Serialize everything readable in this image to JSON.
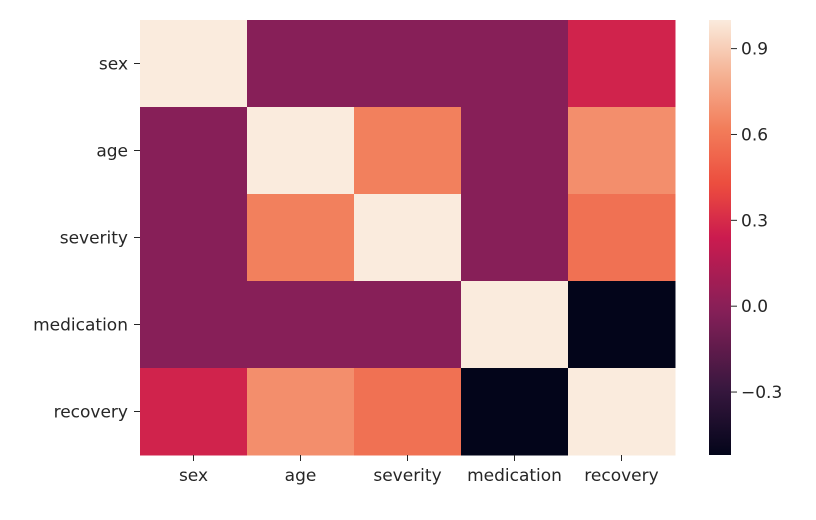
{
  "chart_data": {
    "type": "heatmap",
    "title": "",
    "xlabel": "",
    "ylabel": "",
    "rows": [
      "sex",
      "age",
      "severity",
      "medication",
      "recovery"
    ],
    "columns": [
      "sex",
      "age",
      "severity",
      "medication",
      "recovery"
    ],
    "values": [
      [
        1.0,
        -0.01,
        -0.01,
        -0.01,
        0.27
      ],
      [
        -0.01,
        1.0,
        0.63,
        -0.01,
        0.68
      ],
      [
        -0.01,
        0.63,
        1.0,
        -0.01,
        0.57
      ],
      [
        -0.01,
        -0.01,
        -0.01,
        1.0,
        -0.52
      ],
      [
        0.27,
        0.68,
        0.57,
        -0.52,
        1.0
      ]
    ],
    "colorbar": {
      "vmin": -0.52,
      "vmax": 1.0,
      "ticks": [
        0.9,
        0.6,
        0.3,
        0.0,
        -0.3
      ],
      "tick_labels": [
        "0.9",
        "0.6",
        "0.3",
        "0.0",
        "−0.3"
      ]
    },
    "colormap": "rocket",
    "grid": false
  }
}
